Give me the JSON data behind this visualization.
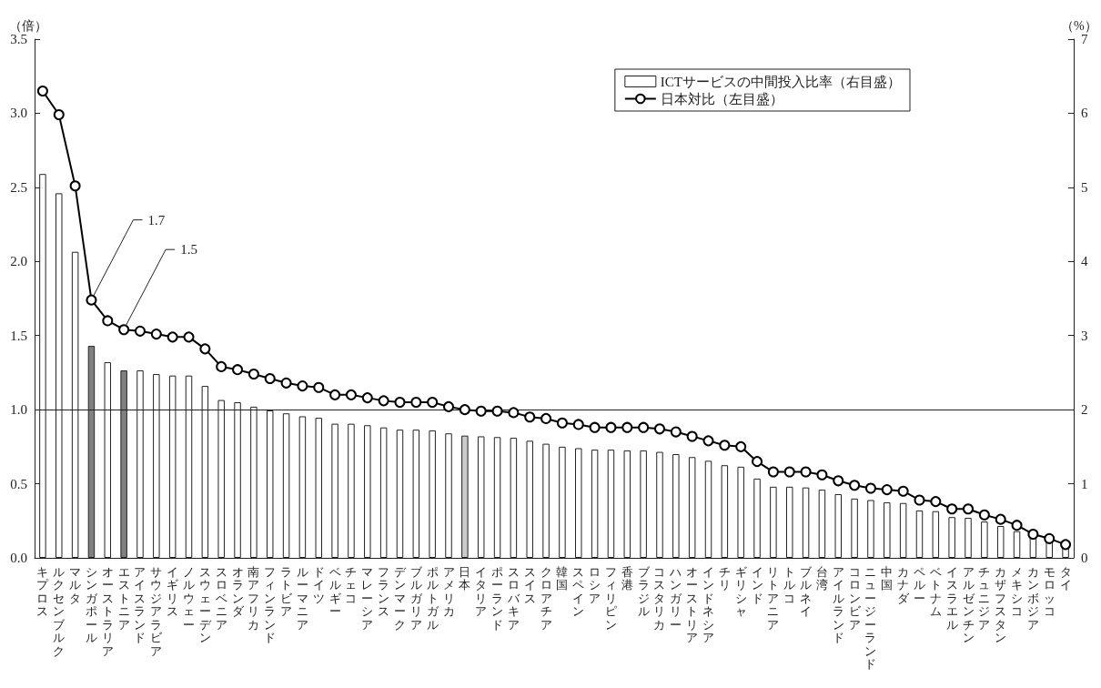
{
  "chart_data": {
    "type": "bar",
    "ylabel": "（倍）",
    "y2label": "（%）",
    "legend": "top right",
    "grid": false,
    "marker": "circle",
    "categories": [
      "キプロス",
      "ルクセンブルク",
      "マルタ",
      "シンガポール",
      "オーストラリア",
      "エストニア",
      "アイスランド",
      "サウジアラビア",
      "イギリス",
      "ノルウェー",
      "スウェーデン",
      "スロベニア",
      "オランダ",
      "南アフリカ",
      "フィンランド",
      "ラトビア",
      "ルーマニア",
      "ドイツ",
      "ベルギー",
      "チェコ",
      "マレーシア",
      "フランス",
      "デンマーク",
      "ブルガリア",
      "ポルトガル",
      "アメリカ",
      "日本",
      "イタリア",
      "ポーランド",
      "スロバキア",
      "スイス",
      "クロアチア",
      "韓国",
      "スペイン",
      "ロシア",
      "フィリピン",
      "香港",
      "ブラジル",
      "コスタリカ",
      "ハンガリー",
      "オーストリア",
      "インドネシア",
      "チリ",
      "ギリシャ",
      "インド",
      "リトアニア",
      "トルコ",
      "ブルネイ",
      "台湾",
      "アイルランド",
      "コロンビア",
      "ニュージーランド",
      "中国",
      "カナダ",
      "ペルー",
      "ベトナム",
      "イスラエル",
      "アルゼンチン",
      "チュニジア",
      "カザフスタン",
      "メキシコ",
      "カンボジア",
      "モロッコ",
      "タイ"
    ],
    "series": [
      {
        "name": "ICTサービスの中間投入比率（右目盛）",
        "axis": "y2",
        "color": "#ffffff",
        "colors": [
          "#ffffff",
          "#ffffff",
          "#ffffff",
          "#808080",
          "#ffffff",
          "#808080",
          "#ffffff",
          "#ffffff",
          "#ffffff",
          "#ffffff",
          "#ffffff",
          "#ffffff",
          "#ffffff",
          "#ffffff",
          "#ffffff",
          "#ffffff",
          "#ffffff",
          "#ffffff",
          "#ffffff",
          "#ffffff",
          "#ffffff",
          "#ffffff",
          "#ffffff",
          "#ffffff",
          "#ffffff",
          "#ffffff",
          "#cccccc",
          "#ffffff",
          "#ffffff",
          "#ffffff",
          "#ffffff",
          "#ffffff",
          "#ffffff",
          "#ffffff",
          "#ffffff",
          "#ffffff",
          "#ffffff",
          "#ffffff",
          "#ffffff",
          "#ffffff",
          "#ffffff",
          "#ffffff",
          "#ffffff",
          "#ffffff",
          "#ffffff",
          "#ffffff",
          "#ffffff",
          "#ffffff",
          "#ffffff",
          "#ffffff",
          "#ffffff",
          "#ffffff",
          "#ffffff",
          "#ffffff",
          "#ffffff",
          "#ffffff",
          "#ffffff",
          "#ffffff",
          "#ffffff",
          "#ffffff",
          "#ffffff",
          "#ffffff",
          "#ffffff",
          "#ffffff"
        ],
        "values": [
          5.18,
          4.92,
          4.13,
          2.86,
          2.64,
          2.53,
          2.53,
          2.48,
          2.46,
          2.46,
          2.32,
          2.13,
          2.1,
          2.04,
          1.99,
          1.95,
          1.91,
          1.89,
          1.81,
          1.81,
          1.79,
          1.76,
          1.73,
          1.73,
          1.72,
          1.68,
          1.65,
          1.64,
          1.63,
          1.62,
          1.58,
          1.54,
          1.5,
          1.48,
          1.46,
          1.46,
          1.45,
          1.45,
          1.43,
          1.4,
          1.36,
          1.31,
          1.25,
          1.23,
          1.07,
          0.96,
          0.96,
          0.95,
          0.92,
          0.86,
          0.8,
          0.78,
          0.75,
          0.74,
          0.64,
          0.63,
          0.55,
          0.54,
          0.49,
          0.43,
          0.36,
          0.28,
          0.23,
          0.18
        ]
      },
      {
        "type": "line",
        "name": "日本対比（左目盛）",
        "axis": "y",
        "color": "#000000",
        "values": [
          3.15,
          2.99,
          2.51,
          1.74,
          1.6,
          1.54,
          1.53,
          1.51,
          1.49,
          1.49,
          1.41,
          1.29,
          1.27,
          1.24,
          1.21,
          1.18,
          1.16,
          1.15,
          1.1,
          1.1,
          1.08,
          1.06,
          1.05,
          1.05,
          1.05,
          1.02,
          1.0,
          0.99,
          0.99,
          0.98,
          0.95,
          0.94,
          0.91,
          0.9,
          0.88,
          0.88,
          0.88,
          0.88,
          0.87,
          0.85,
          0.82,
          0.79,
          0.76,
          0.75,
          0.65,
          0.58,
          0.58,
          0.58,
          0.56,
          0.52,
          0.49,
          0.47,
          0.46,
          0.45,
          0.39,
          0.38,
          0.33,
          0.33,
          0.29,
          0.26,
          0.22,
          0.16,
          0.13,
          0.09
        ]
      }
    ],
    "ylim": [
      0,
      3.5
    ],
    "yticks": [
      {
        "value": 0,
        "label": "0.0"
      },
      {
        "value": 0.5,
        "label": "0.5"
      },
      {
        "value": 1,
        "label": "1.0"
      },
      {
        "value": 1.5,
        "label": "1.5"
      },
      {
        "value": 2,
        "label": "2.0"
      },
      {
        "value": 2.5,
        "label": "2.5"
      },
      {
        "value": 3,
        "label": "3.0"
      },
      {
        "value": 3.5,
        "label": "3.5"
      }
    ],
    "y2lim": [
      0,
      7
    ],
    "y2ticks": [
      0,
      1,
      2,
      3,
      4,
      5,
      6,
      7
    ],
    "ref_lines": [
      {
        "axis": "y",
        "value": 1
      }
    ],
    "annotations": [
      {
        "text": "1.7",
        "x": "シンガポール",
        "y": 1.74
      },
      {
        "text": "1.5",
        "x": "エストニア",
        "y": 1.54
      }
    ]
  }
}
